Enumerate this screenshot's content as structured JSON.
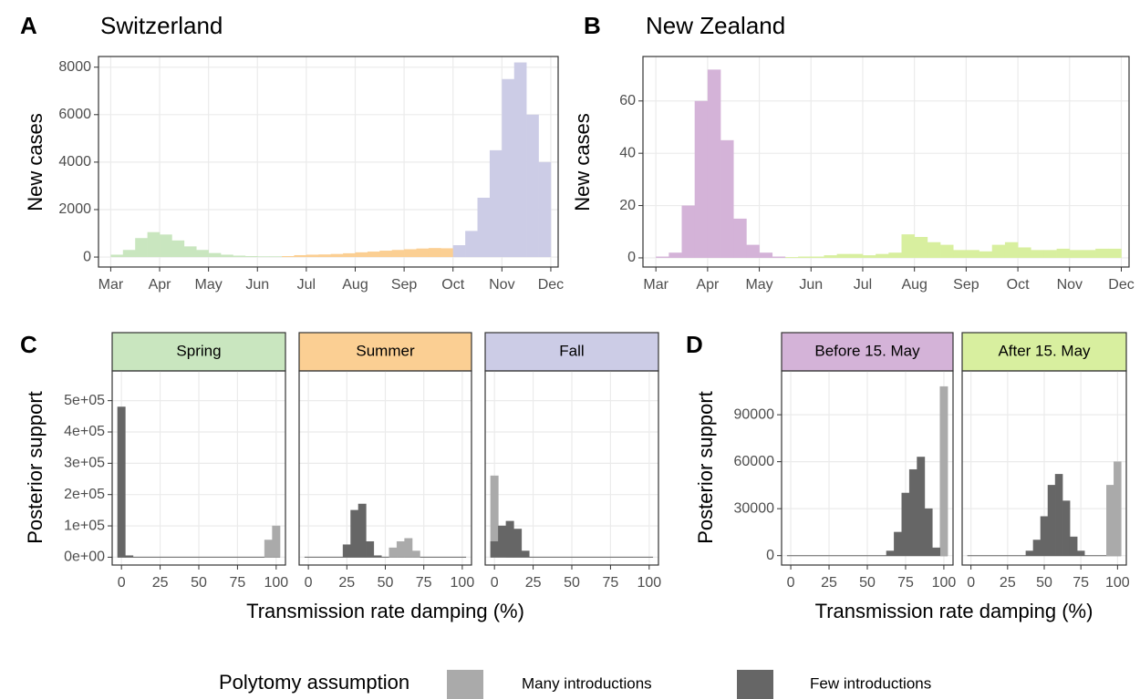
{
  "chart_data": [
    {
      "type": "bar",
      "tag": "A",
      "title": "Switzerland",
      "ylabel": "New cases",
      "xlim": [
        -0.25,
        9.15
      ],
      "xticks": [
        {
          "value": 0,
          "label": "Mar"
        },
        {
          "value": 1,
          "label": "Apr"
        },
        {
          "value": 2,
          "label": "May"
        },
        {
          "value": 3,
          "label": "Jun"
        },
        {
          "value": 4,
          "label": "Jul"
        },
        {
          "value": 5,
          "label": "Aug"
        },
        {
          "value": 6,
          "label": "Sep"
        },
        {
          "value": 7,
          "label": "Oct"
        },
        {
          "value": 8,
          "label": "Nov"
        },
        {
          "value": 9,
          "label": "Dec"
        }
      ],
      "ylim": [
        -420,
        8450
      ],
      "yticks": [
        0,
        2000,
        4000,
        6000,
        8000
      ],
      "grid": true,
      "series": [
        {
          "color": "#c9e6bf",
          "x": [
            0,
            0.25,
            0.5,
            0.75,
            1,
            1.25,
            1.5,
            1.75,
            2,
            2.25,
            2.5,
            2.75,
            3,
            3.25
          ],
          "values": [
            100,
            300,
            800,
            1050,
            950,
            700,
            450,
            300,
            170,
            100,
            60,
            40,
            30,
            30
          ]
        },
        {
          "color": "#fbcf93",
          "x": [
            3.5,
            3.75,
            4,
            4.25,
            4.5,
            4.75,
            5,
            5.25,
            5.5,
            5.75,
            6,
            6.25,
            6.5,
            6.75
          ],
          "values": [
            40,
            80,
            100,
            110,
            130,
            160,
            200,
            230,
            270,
            300,
            330,
            360,
            380,
            370
          ]
        },
        {
          "color": "#cccce6",
          "x": [
            7,
            7.25,
            7.5,
            7.75,
            8,
            8.25,
            8.5,
            8.75
          ],
          "values": [
            500,
            1100,
            2500,
            4500,
            7500,
            8200,
            6000,
            4000
          ]
        }
      ]
    },
    {
      "type": "bar",
      "tag": "B",
      "title": "New Zealand",
      "ylabel": "New cases",
      "xlim": [
        -0.25,
        9.15
      ],
      "xticks": [
        {
          "value": 0,
          "label": "Mar"
        },
        {
          "value": 1,
          "label": "Apr"
        },
        {
          "value": 2,
          "label": "May"
        },
        {
          "value": 3,
          "label": "Jun"
        },
        {
          "value": 4,
          "label": "Jul"
        },
        {
          "value": 5,
          "label": "Aug"
        },
        {
          "value": 6,
          "label": "Sep"
        },
        {
          "value": 7,
          "label": "Oct"
        },
        {
          "value": 8,
          "label": "Nov"
        },
        {
          "value": 9,
          "label": "Dec"
        }
      ],
      "ylim": [
        -3.5,
        77
      ],
      "yticks": [
        0,
        20,
        40,
        60
      ],
      "grid": true,
      "series": [
        {
          "color": "#d4b3d8",
          "x": [
            0,
            0.25,
            0.5,
            0.75,
            1,
            1.25,
            1.5,
            1.75,
            2,
            2.25
          ],
          "values": [
            0.5,
            2,
            20,
            60,
            72,
            45,
            15,
            5,
            2,
            0.5
          ]
        },
        {
          "color": "#d8ef9f",
          "x": [
            2.5,
            2.75,
            3,
            3.25,
            3.5,
            3.75,
            4,
            4.25,
            4.5,
            4.75,
            5,
            5.25,
            5.5,
            5.75,
            6,
            6.25,
            6.5,
            6.75,
            7,
            7.25,
            7.5,
            7.75,
            8,
            8.25,
            8.5,
            8.75
          ],
          "values": [
            0.3,
            0.5,
            0.5,
            1,
            1.5,
            1.5,
            1,
            1.5,
            2,
            9,
            8,
            6,
            5,
            3,
            3,
            2.5,
            5,
            6,
            4,
            3,
            3,
            3.5,
            3,
            3,
            3.5,
            3.5
          ]
        }
      ]
    },
    {
      "type": "histogram",
      "tag": "C",
      "xlabel": "Transmission rate damping (%)",
      "ylabel": "Posterior support",
      "bins": [
        -2.5,
        2.5,
        7.5,
        12.5,
        17.5,
        22.5,
        27.5,
        32.5,
        37.5,
        42.5,
        47.5,
        52.5,
        57.5,
        62.5,
        67.5,
        72.5,
        77.5,
        82.5,
        87.5,
        92.5,
        97.5,
        102.5
      ],
      "xlim": [
        -6,
        106
      ],
      "xticks": [
        0,
        25,
        50,
        75,
        100
      ],
      "ylim": [
        -25000,
        595000
      ],
      "yticks": [
        {
          "value": 0,
          "label": "0e+00"
        },
        {
          "value": 100000,
          "label": "1e+05"
        },
        {
          "value": 200000,
          "label": "2e+05"
        },
        {
          "value": 300000,
          "label": "3e+05"
        },
        {
          "value": 400000,
          "label": "4e+05"
        },
        {
          "value": 500000,
          "label": "5e+05"
        }
      ],
      "grid": true,
      "facets": [
        {
          "strip": "Spring",
          "strip_color": "#c9e6bf",
          "series": [
            {
              "color": "#aaaaaa",
              "values": [
                0,
                0,
                0,
                0,
                0,
                0,
                0,
                0,
                0,
                0,
                0,
                0,
                0,
                0,
                0,
                0,
                0,
                0,
                0,
                55000,
                100000
              ]
            },
            {
              "color": "#666666",
              "values": [
                480000,
                5000,
                0,
                0,
                0,
                0,
                0,
                0,
                0,
                0,
                0,
                0,
                0,
                0,
                0,
                0,
                0,
                0,
                0,
                0,
                0
              ]
            }
          ]
        },
        {
          "strip": "Summer",
          "strip_color": "#fbcf93",
          "series": [
            {
              "color": "#aaaaaa",
              "values": [
                0,
                0,
                0,
                0,
                0,
                0,
                0,
                0,
                0,
                0,
                0,
                30000,
                50000,
                60000,
                20000,
                0,
                0,
                0,
                0,
                0,
                0
              ]
            },
            {
              "color": "#666666",
              "values": [
                0,
                0,
                0,
                0,
                0,
                40000,
                150000,
                170000,
                50000,
                5000,
                0,
                0,
                0,
                0,
                0,
                0,
                0,
                0,
                0,
                0,
                0
              ]
            }
          ]
        },
        {
          "strip": "Fall",
          "strip_color": "#cccce6",
          "series": [
            {
              "color": "#aaaaaa",
              "values": [
                260000,
                20000,
                0,
                0,
                0,
                0,
                0,
                0,
                0,
                0,
                0,
                0,
                0,
                0,
                0,
                0,
                0,
                0,
                0,
                0,
                0
              ]
            },
            {
              "color": "#666666",
              "values": [
                50000,
                100000,
                115000,
                90000,
                20000,
                0,
                0,
                0,
                0,
                0,
                0,
                0,
                0,
                0,
                0,
                0,
                0,
                0,
                0,
                0,
                0
              ]
            }
          ]
        }
      ]
    },
    {
      "type": "histogram",
      "tag": "D",
      "xlabel": "Transmission rate damping (%)",
      "ylabel": "Posterior support",
      "bins": [
        -2.5,
        2.5,
        7.5,
        12.5,
        17.5,
        22.5,
        27.5,
        32.5,
        37.5,
        42.5,
        47.5,
        52.5,
        57.5,
        62.5,
        67.5,
        72.5,
        77.5,
        82.5,
        87.5,
        92.5,
        97.5,
        102.5
      ],
      "xlim": [
        -6,
        106
      ],
      "xticks": [
        0,
        25,
        50,
        75,
        100
      ],
      "ylim": [
        -6000,
        118000
      ],
      "yticks": [
        0,
        30000,
        60000,
        90000
      ],
      "grid": true,
      "facets": [
        {
          "strip": "Before 15. May",
          "strip_color": "#d4b3d8",
          "series": [
            {
              "color": "#aaaaaa",
              "values": [
                0,
                0,
                0,
                0,
                0,
                0,
                0,
                0,
                0,
                0,
                0,
                0,
                0,
                0,
                0,
                0,
                0,
                0,
                0,
                0,
                108000
              ]
            },
            {
              "color": "#666666",
              "values": [
                0,
                0,
                0,
                0,
                0,
                0,
                0,
                0,
                0,
                0,
                0,
                0,
                0,
                3000,
                15000,
                40000,
                55000,
                63000,
                30000,
                5000,
                0
              ]
            }
          ]
        },
        {
          "strip": "After 15. May",
          "strip_color": "#d8ef9f",
          "series": [
            {
              "color": "#aaaaaa",
              "values": [
                0,
                0,
                0,
                0,
                0,
                0,
                0,
                0,
                0,
                0,
                0,
                0,
                0,
                0,
                0,
                0,
                0,
                0,
                0,
                45000,
                60000
              ]
            },
            {
              "color": "#666666",
              "values": [
                0,
                0,
                0,
                0,
                0,
                0,
                0,
                0,
                3000,
                10000,
                25000,
                45000,
                52000,
                35000,
                12000,
                3000,
                0,
                0,
                0,
                0,
                0
              ]
            }
          ]
        }
      ]
    }
  ],
  "legend": {
    "title": "Polytomy assumption",
    "items": [
      {
        "name": "Many introductions",
        "color": "#aaaaaa"
      },
      {
        "name": "Few introductions",
        "color": "#666666"
      }
    ]
  }
}
